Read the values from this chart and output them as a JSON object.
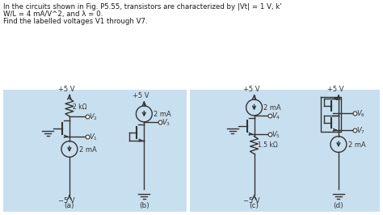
{
  "text_color": "#1a1a1a",
  "circuit_color": "#333333",
  "bg_color": "#c8dff0",
  "white_bg": "#ffffff",
  "title1": "In the circuits shown in Fig. P5.55, transistors are characterized by |Vt| = 1 V, k'",
  "title2": "W/L = 4 mA/V^2, and λ = 0.",
  "title3": "Find the labelled voltages V1 through V7."
}
